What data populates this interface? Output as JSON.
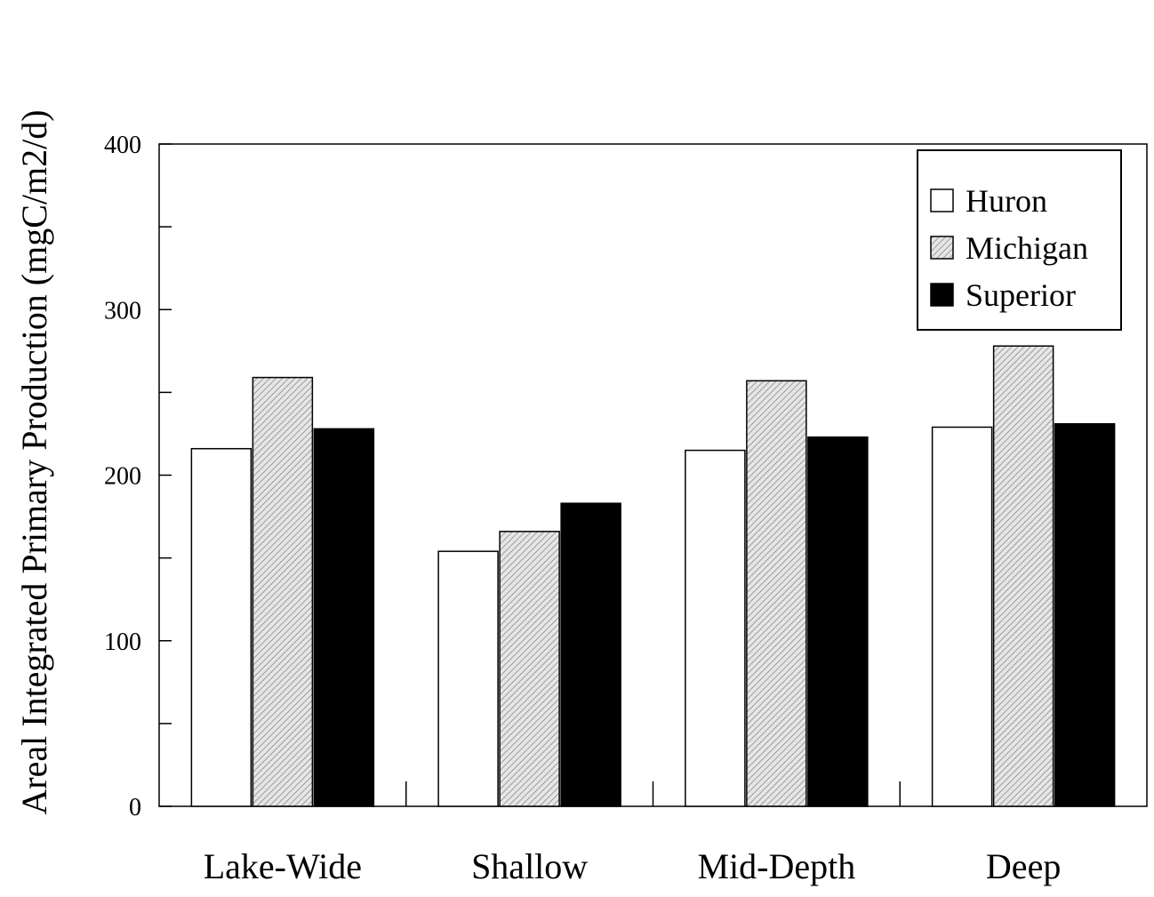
{
  "chart_data": {
    "type": "bar",
    "title": "",
    "xlabel": "",
    "ylabel": "Areal Integrated Primary Production (mgC/m2/d)",
    "categories": [
      "Lake-Wide",
      "Shallow",
      "Mid-Depth",
      "Deep"
    ],
    "series": [
      {
        "name": "Huron",
        "values": [
          216,
          154,
          215,
          229
        ],
        "color": "#ffffff",
        "pattern": "none"
      },
      {
        "name": "Michigan",
        "values": [
          259,
          166,
          257,
          278
        ],
        "color": "#d9d9d9",
        "pattern": "diagonal-hatch"
      },
      {
        "name": "Superior",
        "values": [
          228,
          183,
          223,
          231
        ],
        "color": "#000000",
        "pattern": "none"
      }
    ],
    "ylim": [
      0,
      400
    ],
    "yticks": [
      0,
      100,
      200,
      300,
      400
    ],
    "ytick_labels": [
      "0",
      "100",
      "200",
      "300",
      "400"
    ],
    "minor_yticks": [
      50,
      150,
      250,
      350
    ],
    "grid": false,
    "legend_position": "top-right"
  }
}
